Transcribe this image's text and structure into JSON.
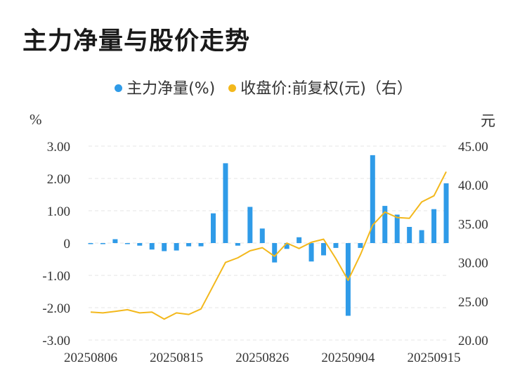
{
  "title": "主力净量与股价走势",
  "legend": {
    "bar_label": "主力净量(%)",
    "line_label": "收盘价:前复权(元)（右）"
  },
  "units": {
    "left": "%",
    "right": "元"
  },
  "colors": {
    "bar": "#2f9be8",
    "line": "#f3b81c",
    "grid": "#e6e6e6"
  },
  "chart_data": {
    "type": "bar+line",
    "x_tick_labels": [
      "20250806",
      "20250815",
      "20250826",
      "20250904",
      "20250915"
    ],
    "x_tick_indices": [
      0,
      7,
      14,
      21,
      28
    ],
    "left_axis": {
      "ylim": [
        -3,
        3
      ],
      "ticks": [
        "3.00",
        "2.00",
        "1.00",
        "0",
        "-1.00",
        "-2.00",
        "-3.00"
      ]
    },
    "right_axis": {
      "ylim": [
        20,
        45
      ],
      "ticks": [
        "45.00",
        "40.00",
        "35.00",
        "30.00",
        "25.00",
        "20.00"
      ]
    },
    "series": [
      {
        "name": "主力净量(%)",
        "type": "bar",
        "axis": "left",
        "values": [
          -0.02,
          -0.02,
          0.12,
          -0.02,
          -0.08,
          -0.2,
          -0.25,
          -0.23,
          -0.1,
          -0.1,
          0.92,
          2.47,
          -0.08,
          1.12,
          0.45,
          -0.6,
          -0.18,
          0.18,
          -0.57,
          -0.38,
          -0.15,
          -2.25,
          -0.15,
          2.72,
          1.15,
          0.88,
          0.5,
          0.4,
          1.05,
          1.85
        ]
      },
      {
        "name": "收盘价:前复权(元)（右）",
        "type": "line",
        "axis": "right",
        "values": [
          23.6,
          23.5,
          23.7,
          23.9,
          23.5,
          23.6,
          22.7,
          23.5,
          23.3,
          24.0,
          27.0,
          30.0,
          30.6,
          31.5,
          31.9,
          30.8,
          32.5,
          31.8,
          32.6,
          33.0,
          30.5,
          27.7,
          31.0,
          34.8,
          36.5,
          35.8,
          35.7,
          37.8,
          38.6,
          41.7
        ]
      }
    ]
  }
}
